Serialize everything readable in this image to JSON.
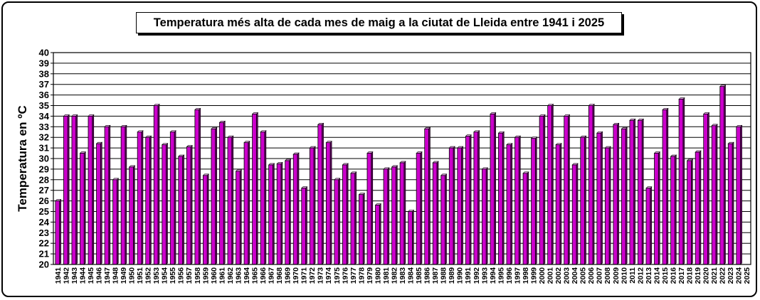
{
  "chart_data": {
    "type": "bar",
    "title": "Temperatura més alta de cada mes de maig a la ciutat de Lleida entre 1941 i 2025",
    "xlabel": "",
    "ylabel": "Temperatura en ºC",
    "ylim": [
      20,
      40
    ],
    "yticks": [
      20,
      21,
      22,
      23,
      24,
      25,
      26,
      27,
      28,
      29,
      30,
      31,
      32,
      33,
      34,
      35,
      36,
      37,
      38,
      39,
      40
    ],
    "grid": true,
    "legend": "none",
    "bar_color": "#cc00cc",
    "categories": [
      "1941",
      "1942",
      "1943",
      "1944",
      "1945",
      "1946",
      "1947",
      "1948",
      "1949",
      "1950",
      "1951",
      "1952",
      "1953",
      "1954",
      "1955",
      "1956",
      "1957",
      "1958",
      "1959",
      "1960",
      "1961",
      "1962",
      "1963",
      "1964",
      "1965",
      "1966",
      "1967",
      "1968",
      "1969",
      "1970",
      "1971",
      "1972",
      "1973",
      "1974",
      "1975",
      "1976",
      "1977",
      "1978",
      "1979",
      "1980",
      "1981",
      "1982",
      "1983",
      "1984",
      "1985",
      "1986",
      "1987",
      "1988",
      "1989",
      "1990",
      "1991",
      "1992",
      "1993",
      "1994",
      "1995",
      "1996",
      "1997",
      "1998",
      "1999",
      "2000",
      "2001",
      "2002",
      "2003",
      "2004",
      "2005",
      "2006",
      "2007",
      "2008",
      "2009",
      "2010",
      "2011",
      "2012",
      "2013",
      "2014",
      "2015",
      "2016",
      "2017",
      "2018",
      "2019",
      "2020",
      "2021",
      "2022",
      "2023",
      "2024",
      "2025"
    ],
    "values": [
      26.0,
      34.0,
      34.0,
      30.5,
      34.0,
      31.4,
      33.0,
      28.0,
      33.0,
      29.2,
      32.5,
      32.0,
      35.0,
      31.3,
      32.5,
      30.2,
      31.1,
      34.6,
      28.4,
      32.8,
      33.4,
      32.0,
      28.8,
      31.5,
      34.2,
      32.5,
      29.4,
      29.5,
      29.8,
      30.4,
      27.2,
      31.0,
      33.2,
      31.5,
      28.0,
      29.4,
      28.6,
      26.6,
      30.5,
      25.6,
      29.0,
      29.2,
      29.6,
      25.0,
      30.5,
      32.8,
      29.6,
      28.4,
      31.0,
      31.0,
      32.1,
      32.5,
      29.0,
      34.2,
      32.4,
      31.3,
      32.0,
      28.6,
      31.9,
      34.0,
      35.0,
      31.3,
      34.0,
      29.4,
      32.0,
      35.0,
      32.4,
      31.0,
      33.2,
      32.8,
      33.6,
      33.6,
      27.2,
      30.5,
      34.6,
      30.2,
      35.6,
      29.8,
      30.6,
      34.2,
      33.1,
      36.8,
      31.4,
      33.0,
      null
    ]
  }
}
